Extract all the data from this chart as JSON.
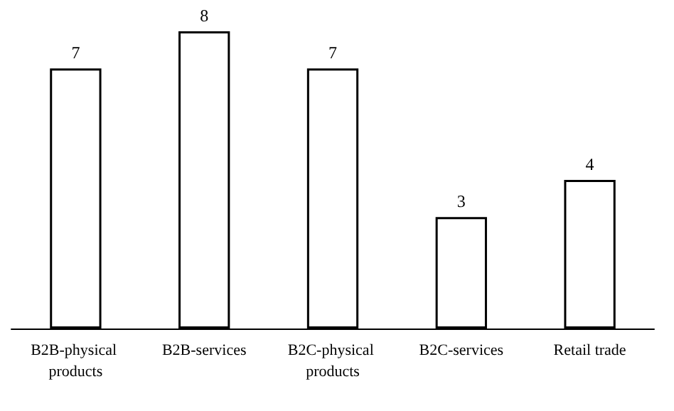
{
  "chart_data": {
    "type": "bar",
    "categories": [
      "B2B-physical products",
      "B2B-services",
      "B2C-physical products",
      "B2C-services",
      "Retail trade"
    ],
    "values": [
      7,
      8,
      7,
      3,
      4
    ],
    "color": "#ffffff",
    "data_labels": true
  }
}
